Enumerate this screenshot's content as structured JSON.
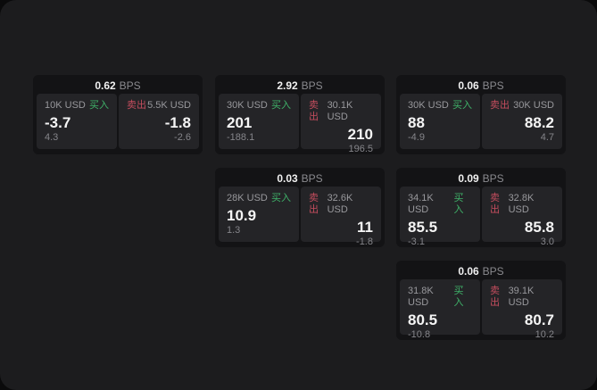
{
  "labels": {
    "bps_suffix": "BPS",
    "buy": "买入",
    "sell": "卖出"
  },
  "colors": {
    "buy_green": "#3fb269",
    "sell_red": "#c44d5e",
    "canvas_background": "#1c1c1e",
    "card_background": "#131315",
    "panel_background": "#242427",
    "price_text": "#f5f5f5",
    "label_gray": "#98989c"
  },
  "cards": [
    {
      "bps": "0.62",
      "row": 1,
      "col": 1,
      "buy": {
        "amount": "10K USD",
        "price": "-3.7",
        "delta": "4.3"
      },
      "sell": {
        "amount": "5.5K USD",
        "price": "-1.8",
        "delta": "-2.6"
      }
    },
    {
      "bps": "2.92",
      "row": 1,
      "col": 2,
      "buy": {
        "amount": "30K USD",
        "price": "201",
        "delta": "-188.1"
      },
      "sell": {
        "amount": "30.1K USD",
        "price": "210",
        "delta": "196.5"
      }
    },
    {
      "bps": "0.06",
      "row": 1,
      "col": 3,
      "buy": {
        "amount": "30K USD",
        "price": "88",
        "delta": "-4.9"
      },
      "sell": {
        "amount": "30K USD",
        "price": "88.2",
        "delta": "4.7"
      }
    },
    {
      "bps": "0.03",
      "row": 2,
      "col": 2,
      "buy": {
        "amount": "28K USD",
        "price": "10.9",
        "delta": "1.3"
      },
      "sell": {
        "amount": "32.6K USD",
        "price": "11",
        "delta": "-1.8"
      }
    },
    {
      "bps": "0.09",
      "row": 2,
      "col": 3,
      "buy": {
        "amount": "34.1K USD",
        "price": "85.5",
        "delta": "-3.1"
      },
      "sell": {
        "amount": "32.8K USD",
        "price": "85.8",
        "delta": "3.0"
      }
    },
    {
      "bps": "0.06",
      "row": 3,
      "col": 3,
      "buy": {
        "amount": "31.8K USD",
        "price": "80.5",
        "delta": "-10.8"
      },
      "sell": {
        "amount": "39.1K USD",
        "price": "80.7",
        "delta": "10.2"
      }
    }
  ]
}
